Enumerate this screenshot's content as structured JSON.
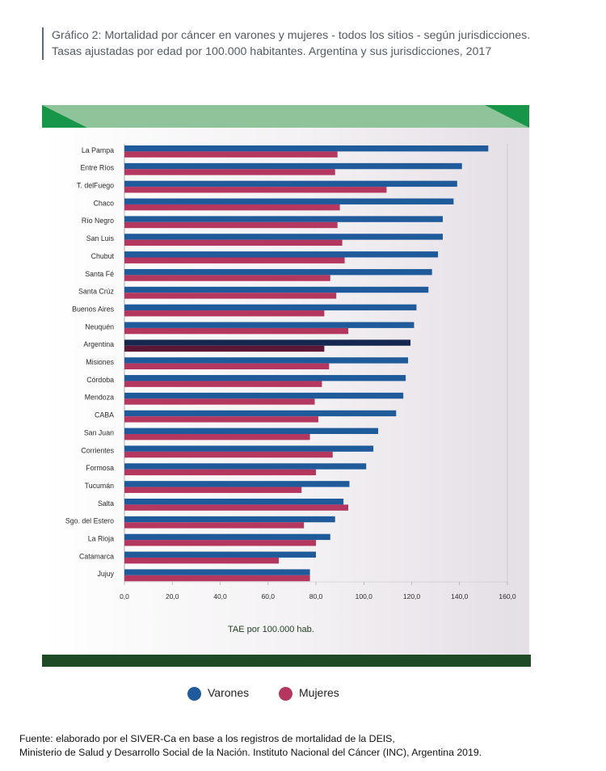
{
  "title": {
    "line1": "Gráfico 2: Mortalidad por cáncer en varones y mujeres - todos los sitios - según jurisdicciones.",
    "line2": "Tasas ajustadas por edad por 100.000 habitantes. Argentina y sus jurisdicciones, 2017"
  },
  "chart_data": {
    "type": "bar",
    "orientation": "horizontal",
    "categories": [
      "La Pampa",
      "Entre Ríos",
      "T. delFuego",
      "Chaco",
      "Río Negro",
      "San Luis",
      "Chubut",
      "Santa Fé",
      "Santa Crúz",
      "Buenos Aires",
      "Neuquén",
      "Argentina",
      "Misiones",
      "Córdoba",
      "Mendoza",
      "CABA",
      "San Juan",
      "Corrientes",
      "Formosa",
      "Tucumán",
      "Salta",
      "Sgo. del Estero",
      "La Rioja",
      "Catamarca",
      "Jujuy"
    ],
    "series": [
      {
        "name": "Varones",
        "color": "#1f5a9a",
        "values": [
          152.0,
          141.0,
          139.0,
          137.5,
          133.0,
          133.0,
          131.0,
          128.5,
          127.0,
          122.0,
          121.0,
          119.5,
          118.5,
          117.5,
          116.5,
          113.5,
          106.0,
          104.0,
          101.0,
          94.0,
          91.5,
          88.0,
          86.0,
          80.0,
          77.5
        ]
      },
      {
        "name": "Mujeres",
        "color": "#b3375e",
        "values": [
          89.0,
          88.0,
          109.5,
          90.0,
          89.0,
          91.0,
          92.0,
          86.0,
          88.5,
          83.5,
          93.5,
          83.5,
          85.5,
          82.5,
          79.5,
          81.0,
          77.5,
          87.0,
          80.0,
          74.0,
          93.5,
          75.0,
          80.0,
          64.5,
          77.5
        ]
      }
    ],
    "highlight_category": "Argentina",
    "highlight_colors": {
      "Varones": "#16274f",
      "Mujeres": "#5c1736"
    },
    "xlim": [
      0,
      160
    ],
    "xticks": [
      "0,0",
      "20,0",
      "40,0",
      "60,0",
      "80,0",
      "100,0",
      "120,0",
      "140,0",
      "160,0"
    ],
    "xlabel": "TAE por 100.000 hab."
  },
  "legend": {
    "items": [
      {
        "label": "Varones",
        "color": "#1f5a9a"
      },
      {
        "label": "Mujeres",
        "color": "#b3375e"
      }
    ]
  },
  "source": {
    "line1": "Fuente: elaborado por el SIVER-Ca en base a los registros de mortalidad de la DEIS,",
    "line2": "Ministerio de Salud y Desarrollo Social de la Nación. Instituto Nacional del Cáncer (INC), Argentina 2019."
  },
  "colors": {
    "band_light_green": "#8fc49b",
    "band_dark_green": "#17964a",
    "footer_green": "#1f4a26"
  }
}
